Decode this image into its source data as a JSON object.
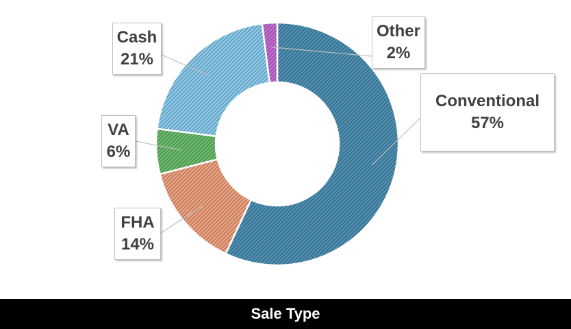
{
  "chart_data": {
    "type": "pie",
    "donut": true,
    "slices": [
      {
        "label": "Conventional",
        "value": 57,
        "value_label": "57%",
        "color": "#4f93b8"
      },
      {
        "label": "FHA",
        "value": 14,
        "value_label": "14%",
        "color": "#f4a582"
      },
      {
        "label": "VA",
        "value": 6,
        "value_label": "6%",
        "color": "#6cc06c"
      },
      {
        "label": "Cash",
        "value": 21,
        "value_label": "21%",
        "color": "#8ccff2"
      },
      {
        "label": "Other",
        "value": 2,
        "value_label": "2%",
        "color": "#c86fd8"
      }
    ],
    "legend": "none"
  },
  "footer": {
    "title": "Sale Type"
  }
}
